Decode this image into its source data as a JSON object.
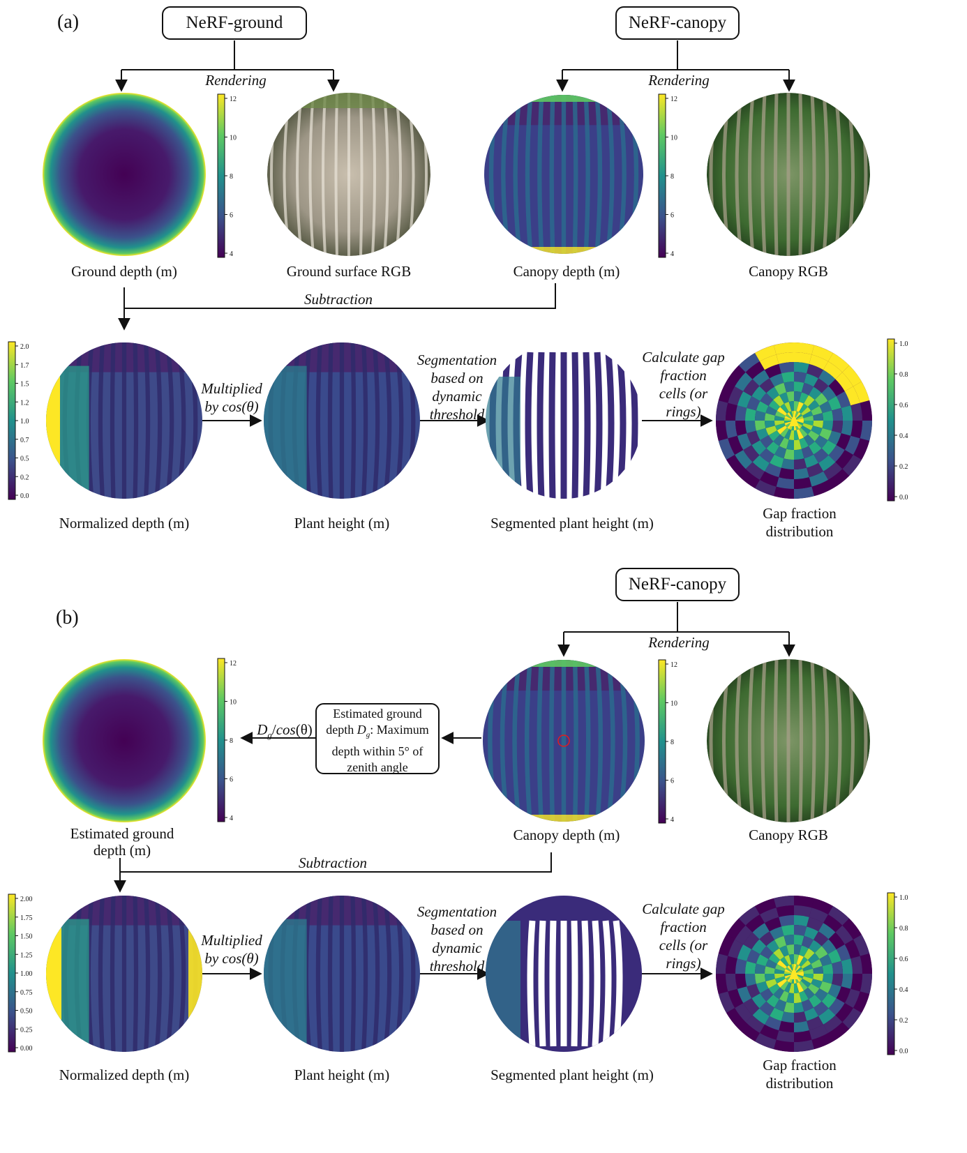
{
  "panel_a": {
    "label": "(a)",
    "box_ground": "NeRF-ground",
    "box_canopy": "NeRF-canopy",
    "rendering_1": "Rendering",
    "rendering_2": "Rendering",
    "ground_depth": "Ground depth (m)",
    "ground_rgb": "Ground surface RGB",
    "canopy_depth": "Canopy depth (m)",
    "canopy_rgb": "Canopy RGB",
    "subtraction": "Subtraction",
    "normalized_depth": "Normalized depth (m)",
    "multiplied_1": "Multiplied",
    "multiplied_2": "by cos(θ)",
    "plant_height": "Plant height (m)",
    "seg_1": "Segmentation",
    "seg_2": "based on",
    "seg_3": "dynamic",
    "seg_4": "threshold",
    "segmented": "Segmented plant height (m)",
    "calc_1": "Calculate gap",
    "calc_2": "fraction",
    "calc_3": "cells (or",
    "calc_4": "rings)",
    "gap_1": "Gap fraction",
    "gap_2": "distribution",
    "cb_depth_ticks": [
      "12",
      "10",
      "8",
      "6",
      "4"
    ],
    "cb_norm_ticks": [
      "2.0",
      "1.7",
      "1.5",
      "1.2",
      "1.0",
      "0.7",
      "0.5",
      "0.2",
      "0.0"
    ],
    "cb_gap_ticks": [
      "1.0",
      "0.8",
      "0.6",
      "0.4",
      "0.2",
      "0.0"
    ]
  },
  "panel_b": {
    "label": "(b)",
    "box_canopy": "NeRF-canopy",
    "rendering": "Rendering",
    "est_ground_1": "Estimated ground",
    "est_ground_2": "depth (m)",
    "dg_label": "Dg/cos(θ)",
    "est_box_1": "Estimated ground",
    "est_box_2": "depth Dg: Maximum",
    "est_box_3": "depth within 5° of",
    "est_box_4": "zenith angle",
    "canopy_depth": "Canopy depth (m)",
    "canopy_rgb": "Canopy RGB",
    "subtraction": "Subtraction",
    "normalized_depth": "Normalized depth (m)",
    "multiplied_1": "Multiplied",
    "multiplied_2": "by cos(θ)",
    "plant_height": "Plant height (m)",
    "seg_1": "Segmentation",
    "seg_2": "based on",
    "seg_3": "dynamic",
    "seg_4": "threshold",
    "segmented": "Segmented plant height (m)",
    "calc_1": "Calculate gap",
    "calc_2": "fraction",
    "calc_3": "cells (or",
    "calc_4": "rings)",
    "gap_1": "Gap fraction",
    "gap_2": "distribution",
    "cb_depth_ticks": [
      "12",
      "10",
      "8",
      "6",
      "4"
    ],
    "cb_norm_ticks": [
      "2.00",
      "1.75",
      "1.50",
      "1.25",
      "1.00",
      "0.75",
      "0.50",
      "0.25",
      "0.00"
    ],
    "cb_gap_ticks": [
      "1.0",
      "0.8",
      "0.6",
      "0.4",
      "0.2",
      "0.0"
    ]
  },
  "colors": {
    "viridis_dark": "#440154",
    "viridis_blue": "#3b528b",
    "viridis_teal": "#21918c",
    "viridis_green": "#5ec962",
    "viridis_yellow": "#fde725",
    "marker_red": "#e41a1c"
  }
}
